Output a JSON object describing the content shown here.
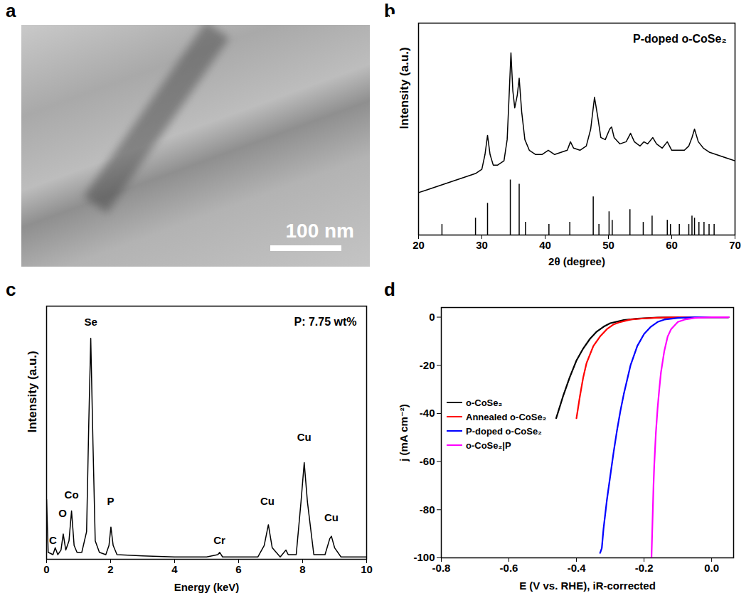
{
  "chart_data": [
    {
      "panel": "a",
      "type": "image",
      "annotation": "100 nm"
    },
    {
      "panel": "b",
      "type": "line",
      "annotation": "P-doped o-CoSe₂",
      "x_label": "2θ (degree)",
      "y_label": "Intensity (a.u.)",
      "xlim": [
        20,
        70
      ],
      "xticks": [
        20,
        30,
        40,
        50,
        60,
        70
      ],
      "ylim": [
        0,
        100
      ],
      "yticks": [],
      "tick_labels": "x",
      "color": "#000000",
      "x": [
        20,
        21,
        22,
        23,
        24,
        25,
        26,
        27,
        28,
        29,
        29.5,
        30,
        30.5,
        30.9,
        31.3,
        31.8,
        32.5,
        33.5,
        34,
        34.3,
        34.6,
        34.9,
        35.2,
        35.6,
        35.9,
        36.3,
        36.8,
        37.5,
        38.5,
        39.5,
        40.5,
        41.5,
        42.5,
        43.5,
        44,
        44.5,
        45.5,
        46.5,
        47.2,
        47.8,
        48.3,
        48.8,
        49.5,
        50.2,
        50.5,
        50.9,
        51.8,
        52.8,
        53.5,
        54.1,
        55,
        55.6,
        56.2,
        57,
        57.6,
        58.5,
        59.3,
        60,
        61,
        62,
        62.7,
        63.2,
        63.6,
        64.2,
        65,
        66,
        67,
        68,
        69,
        70
      ],
      "values": [
        20,
        21,
        22,
        23,
        24,
        25,
        26,
        27,
        28,
        29,
        30,
        31,
        38,
        47,
        38,
        33,
        33,
        35,
        45,
        65,
        86,
        68,
        60,
        66,
        74,
        58,
        45,
        40,
        38,
        38,
        40,
        38,
        39,
        40,
        44,
        41,
        40,
        42,
        50,
        65,
        56,
        46,
        45,
        50,
        51,
        46,
        43,
        44,
        48,
        44,
        42,
        44,
        43,
        46,
        43,
        41,
        44,
        40,
        40,
        40,
        42,
        46,
        50,
        44,
        41,
        39,
        38,
        37,
        36,
        35
      ],
      "reference": {
        "type": "bar",
        "color": "#000000",
        "x": [
          23.7,
          29,
          30.9,
          34.5,
          35.9,
          36.9,
          40.6,
          43.9,
          47.6,
          48.5,
          50.1,
          50.6,
          53.4,
          55.5,
          56.9,
          59.3,
          59.8,
          61.2,
          62.7,
          63.2,
          63.6,
          64.3,
          65.1,
          65.9,
          66.7
        ],
        "values": [
          5,
          8,
          15,
          26,
          24,
          6,
          5,
          6,
          18,
          5,
          11,
          7,
          12,
          6,
          9,
          7,
          5,
          5,
          5,
          9,
          8,
          6,
          6,
          5,
          5
        ]
      }
    },
    {
      "panel": "c",
      "type": "line",
      "annotation": "P: 7.75 wt%",
      "x_label": "Energy (keV)",
      "y_label": "Intensity (a.u.)",
      "xlim": [
        0,
        10
      ],
      "xticks": [
        0,
        2,
        4,
        6,
        8,
        10
      ],
      "ylim": [
        0,
        110
      ],
      "yticks": [],
      "tick_labels": "x",
      "color": "#000000",
      "x": [
        0,
        0.05,
        0.2,
        0.27,
        0.35,
        0.45,
        0.52,
        0.6,
        0.7,
        0.78,
        0.86,
        0.95,
        1.1,
        1.25,
        1.32,
        1.38,
        1.45,
        1.52,
        1.65,
        1.85,
        1.95,
        2.01,
        2.08,
        2.2,
        3,
        4,
        5,
        5.35,
        5.41,
        5.5,
        6,
        6.6,
        6.8,
        6.93,
        7.05,
        7.3,
        7.48,
        7.55,
        7.8,
        7.95,
        8.05,
        8.15,
        8.35,
        8.7,
        8.85,
        8.9,
        9.0,
        9.2,
        10
      ],
      "values": [
        26,
        3,
        2,
        5,
        2,
        4,
        11,
        4,
        8,
        21,
        6,
        3,
        3,
        12,
        60,
        96,
        50,
        8,
        3,
        2,
        6,
        14,
        6,
        2,
        1.5,
        1,
        1,
        2,
        3,
        1,
        1,
        1,
        6,
        15,
        5,
        1,
        4,
        2,
        2,
        25,
        42,
        25,
        2,
        2,
        9,
        10,
        5,
        1,
        1
      ],
      "peak_labels": [
        {
          "text": "C",
          "x": 0.2,
          "y": 8
        },
        {
          "text": "O",
          "x": 0.5,
          "y": 20
        },
        {
          "text": "Co",
          "x": 0.78,
          "y": 28
        },
        {
          "text": "Se",
          "x": 1.38,
          "y": 103
        },
        {
          "text": "P",
          "x": 2.0,
          "y": 25
        },
        {
          "text": "Cr",
          "x": 5.4,
          "y": 8
        },
        {
          "text": "Cu",
          "x": 6.9,
          "y": 25
        },
        {
          "text": "Cu",
          "x": 8.05,
          "y": 53
        },
        {
          "text": "Cu",
          "x": 8.9,
          "y": 18
        }
      ]
    },
    {
      "panel": "d",
      "type": "line",
      "legend": "lower left",
      "x_label": "E (V vs. RHE), iR-corrected",
      "y_label": "j (mA cm⁻²)",
      "xlim": [
        -0.8,
        0.065
      ],
      "xticks": [
        -0.8,
        -0.6,
        -0.4,
        -0.2,
        {
          "value": 0,
          "label": "0.0"
        }
      ],
      "ylim": [
        -100,
        4
      ],
      "yticks": [
        -100,
        -80,
        -60,
        -40,
        -20,
        0
      ],
      "series": [
        {
          "name": "o-CoSe₂",
          "color": "#000000",
          "x": [
            -0.46,
            -0.44,
            -0.42,
            -0.4,
            -0.38,
            -0.36,
            -0.34,
            -0.32,
            -0.3,
            -0.26,
            -0.22,
            -0.16,
            -0.1,
            0.05
          ],
          "values": [
            -42,
            -33,
            -25,
            -18,
            -13,
            -9,
            -6,
            -4,
            -2.5,
            -1.2,
            -0.6,
            -0.2,
            0,
            0
          ]
        },
        {
          "name": "Annealed o-CoSe₂",
          "color": "#ff0000",
          "x": [
            -0.4,
            -0.39,
            -0.38,
            -0.37,
            -0.35,
            -0.33,
            -0.31,
            -0.29,
            -0.27,
            -0.24,
            -0.2,
            -0.15,
            -0.1,
            0.05
          ],
          "values": [
            -42,
            -33,
            -25,
            -19,
            -12,
            -8,
            -5,
            -3,
            -2,
            -1,
            -0.5,
            -0.2,
            0,
            0
          ]
        },
        {
          "name": "P-doped o-CoSe₂",
          "color": "#0000ff",
          "x": [
            -0.33,
            -0.325,
            -0.32,
            -0.31,
            -0.3,
            -0.29,
            -0.28,
            -0.27,
            -0.26,
            -0.25,
            -0.24,
            -0.22,
            -0.2,
            -0.18,
            -0.16,
            -0.14,
            -0.1,
            -0.05,
            0.05
          ],
          "values": [
            -98,
            -96,
            -88,
            -76,
            -66,
            -56,
            -47,
            -39,
            -32,
            -26,
            -20,
            -12,
            -7,
            -4,
            -2,
            -1,
            -0.3,
            0,
            0
          ]
        },
        {
          "name": "o-CoSe₂|P",
          "color": "#ff00ff",
          "x": [
            -0.178,
            -0.176,
            -0.174,
            -0.172,
            -0.17,
            -0.165,
            -0.16,
            -0.155,
            -0.15,
            -0.14,
            -0.13,
            -0.12,
            -0.1,
            -0.08,
            -0.05,
            0,
            0.05
          ],
          "values": [
            -100,
            -90,
            -80,
            -70,
            -62,
            -48,
            -38,
            -30,
            -23,
            -14,
            -8,
            -5,
            -2,
            -1,
            -0.3,
            0,
            0
          ]
        }
      ]
    }
  ]
}
